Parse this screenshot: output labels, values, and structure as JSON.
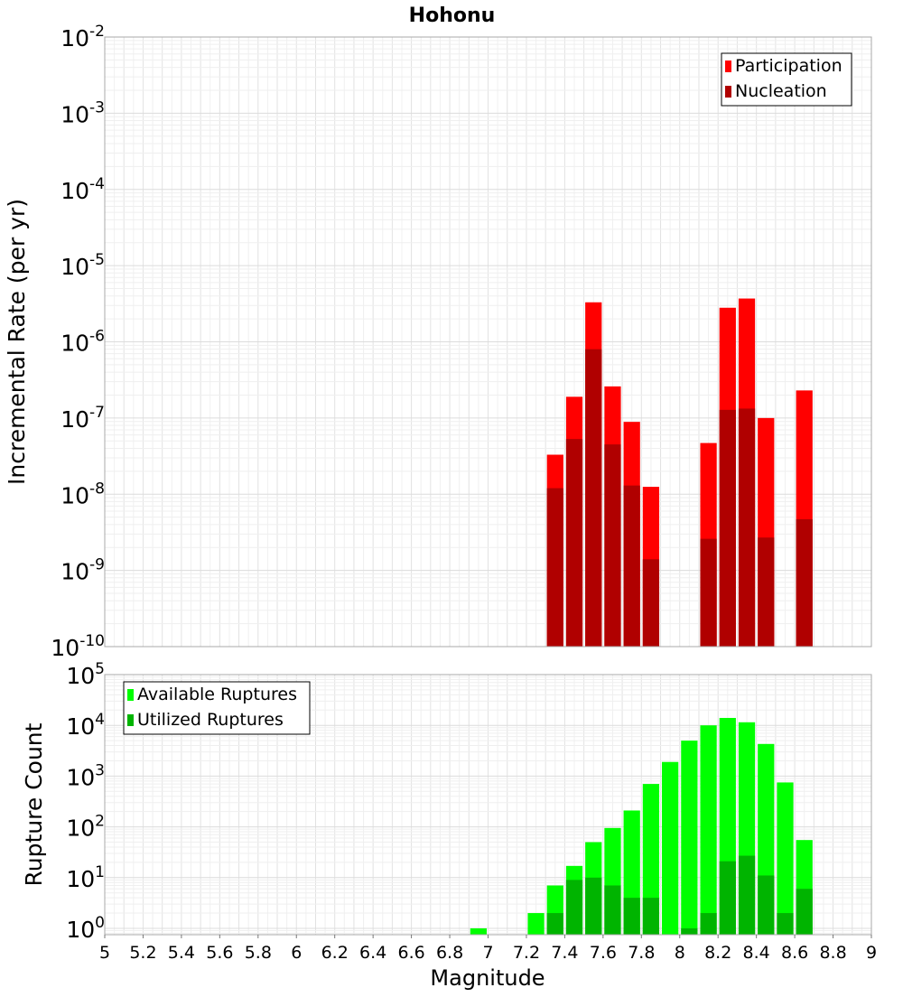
{
  "chart_data": [
    {
      "type": "bar",
      "title": "Hohonu",
      "xlabel": "",
      "ylabel": "Incremental Rate (per yr)",
      "yscale": "log",
      "xlim": [
        5,
        9
      ],
      "ylim": [
        1e-10,
        0.01
      ],
      "y_tick_exponents": [
        -10,
        -9,
        -8,
        -7,
        -6,
        -5,
        -4,
        -3,
        -2
      ],
      "grid": true,
      "legend_position": "top-right",
      "bar_width": 0.1,
      "colors": {
        "Participation": "#ff0000",
        "Nucleation": "#b00000"
      },
      "series": [
        {
          "name": "Participation",
          "x": [
            7.35,
            7.45,
            7.55,
            7.65,
            7.75,
            7.85,
            8.15,
            8.25,
            8.35,
            8.45,
            8.65
          ],
          "values": [
            3.3e-08,
            1.9e-07,
            3.3e-06,
            2.6e-07,
            8.9e-08,
            1.25e-08,
            4.7e-08,
            2.8e-06,
            3.7e-06,
            1e-07,
            2.3e-07
          ]
        },
        {
          "name": "Nucleation",
          "x": [
            7.35,
            7.45,
            7.55,
            7.65,
            7.75,
            7.85,
            8.15,
            8.25,
            8.35,
            8.45,
            8.65
          ],
          "values": [
            1.2e-08,
            5.3e-08,
            8e-07,
            4.5e-08,
            1.3e-08,
            1.4e-09,
            2.6e-09,
            1.28e-07,
            1.33e-07,
            2.7e-09,
            4.7e-09
          ]
        }
      ]
    },
    {
      "type": "bar",
      "title": "",
      "xlabel": "Magnitude",
      "ylabel": "Rupture Count",
      "yscale": "log",
      "xlim": [
        5,
        9
      ],
      "ylim": [
        0.75,
        100000
      ],
      "y_tick_exponents": [
        0,
        1,
        2,
        3,
        4,
        5
      ],
      "x_ticks": [
        "5",
        "5.2",
        "5.4",
        "5.6",
        "5.8",
        "6",
        "6.2",
        "6.4",
        "6.6",
        "6.8",
        "7",
        "7.2",
        "7.4",
        "7.6",
        "7.8",
        "8",
        "8.2",
        "8.4",
        "8.6",
        "8.8",
        "9"
      ],
      "grid": true,
      "legend_position": "top-left",
      "bar_width": 0.1,
      "colors": {
        "Available Ruptures": "#00ff00",
        "Utilized Ruptures": "#00b400"
      },
      "series": [
        {
          "name": "Available Ruptures",
          "x": [
            6.95,
            7.25,
            7.35,
            7.45,
            7.55,
            7.65,
            7.75,
            7.85,
            7.95,
            8.05,
            8.15,
            8.25,
            8.35,
            8.45,
            8.55,
            8.65
          ],
          "values": [
            1,
            2,
            7,
            17,
            50,
            95,
            210,
            700,
            1900,
            5000,
            10000,
            14000,
            11500,
            4300,
            750,
            55
          ]
        },
        {
          "name": "Utilized Ruptures",
          "x": [
            7.35,
            7.45,
            7.55,
            7.65,
            7.75,
            7.85,
            8.05,
            8.15,
            8.25,
            8.35,
            8.45,
            8.55,
            8.65
          ],
          "values": [
            2,
            9,
            10,
            7,
            4,
            4,
            1,
            2,
            21,
            27,
            11,
            2,
            6
          ]
        }
      ]
    }
  ]
}
